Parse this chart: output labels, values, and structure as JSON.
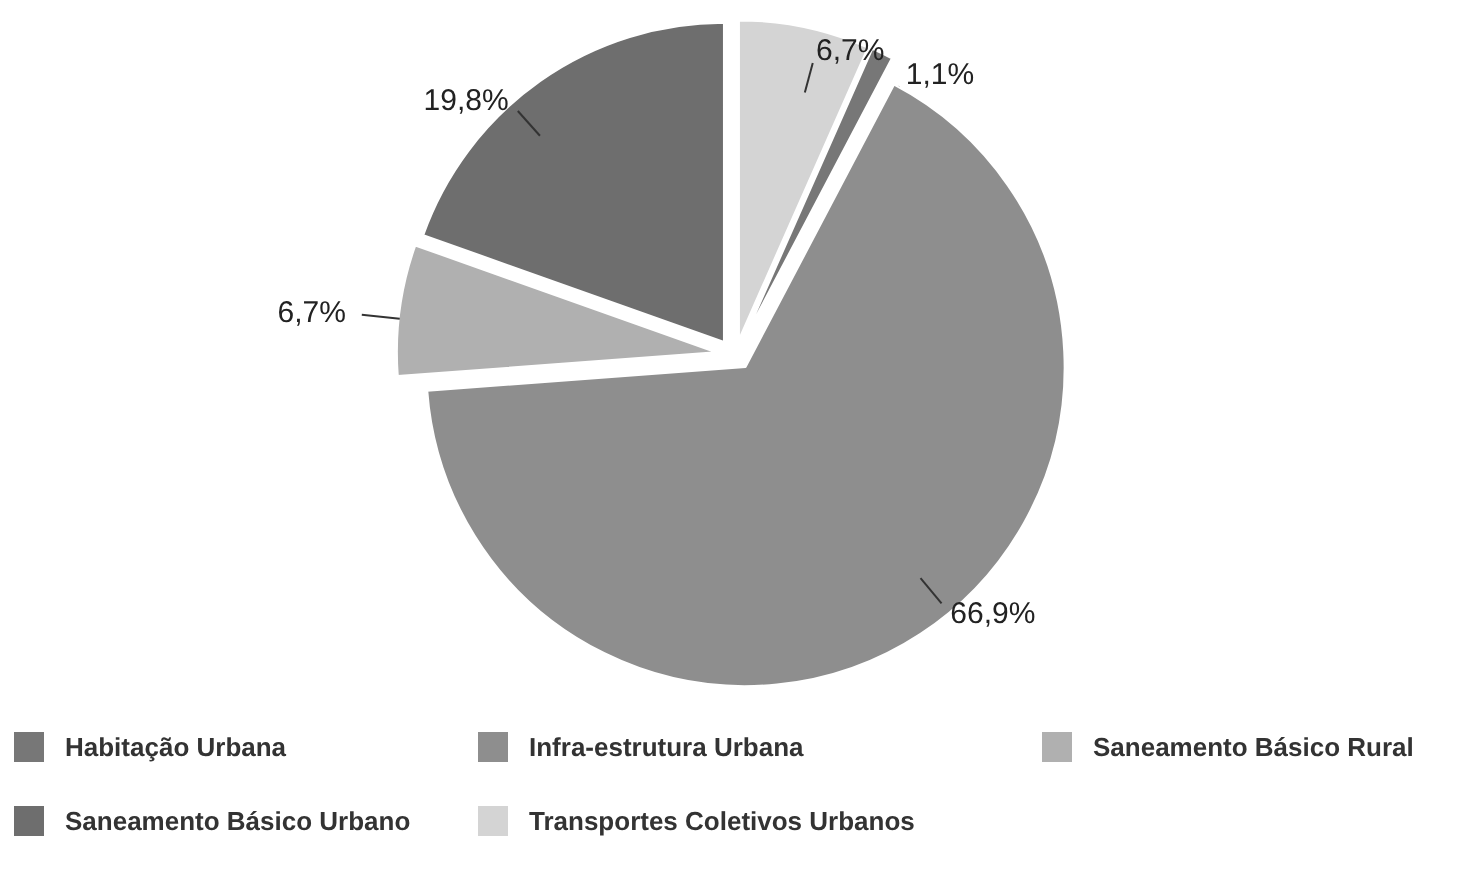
{
  "chart_data": {
    "type": "pie",
    "categories": [
      "Habitação Urbana",
      "Infra-estrutura Urbana",
      "Saneamento Básico Rural",
      "Saneamento Básico Urbano",
      "Transportes Coletivos Urbanos"
    ],
    "values": [
      1.1,
      66.9,
      6.7,
      19.8,
      6.7
    ],
    "colors": [
      "#777777",
      "#8e8e8e",
      "#b0b0b0",
      "#6e6e6e",
      "#d4d4d4"
    ],
    "value_labels": [
      "1,1%",
      "66,9%",
      "6,7%",
      "19,8%",
      "6,7%"
    ],
    "legend": "bottom"
  }
}
